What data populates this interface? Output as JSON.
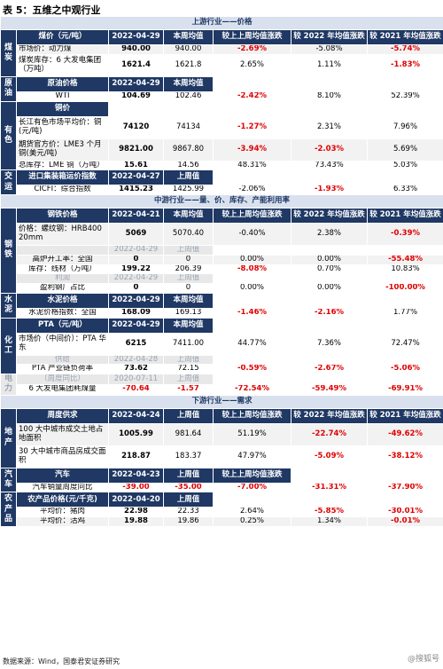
{
  "title": "表 5：五维之中观行业",
  "sections": {
    "upstream": "上游行业——价格",
    "midstream": "中游行业——量、价、库存、产能利用率",
    "downstream": "下游行业——需求"
  },
  "cols": {
    "current_week": "本周均值",
    "prev_week": "上周均值",
    "wow": "较上上周均值涨跌",
    "vs2022": "较 2022 年均值涨跌",
    "vs2021": "较 2021 年均值涨跌"
  },
  "rows": {
    "coal_hdr": {
      "label": "煤价（元/吨）",
      "date": "2022-04-29"
    },
    "coal_1": {
      "label": "市场价：动力煤",
      "cur": "940.00",
      "prev": "940.00",
      "wow": "-2.69%",
      "y22": "-5.08%",
      "y21": "-5.74%"
    },
    "coal_2": {
      "label": "煤炭库存：6 大发电集团（万吨）",
      "cur": "1621.4",
      "prev": "1621.8",
      "wow": "2.65%",
      "y22": "1.11%",
      "y21": "-1.83%"
    },
    "oil_hdr": {
      "label": "原油价格",
      "date": "2022-04-29"
    },
    "oil_1": {
      "label": "WTI",
      "cur": "104.69",
      "prev": "102.46",
      "wow": "-2.42%",
      "y22": "8.10%",
      "y21": "52.39%"
    },
    "cu_hdr": {
      "label": "铜价"
    },
    "cu_1": {
      "label": "长江有色市场平均价：铜(元/吨)",
      "cur": "74120",
      "prev": "74134",
      "wow": "-1.27%",
      "y22": "2.31%",
      "y21": "7.96%"
    },
    "cu_2": {
      "label": "期货官方价：LME3 个月铜(美元/吨)",
      "cur": "9821.00",
      "prev": "9867.80",
      "wow": "-3.94%",
      "y22": "-2.03%",
      "y21": "5.69%"
    },
    "cu_3": {
      "label": "总库存：LME 铜（万吨）",
      "cur": "15.61",
      "prev": "14.56",
      "wow": "48.31%",
      "y22": "73.43%",
      "y21": "5.03%"
    },
    "ship_hdr": {
      "label": "进口集装箱运价指数",
      "date": "2022-04-27",
      "prev": "上周值"
    },
    "ship_1": {
      "label": "CICFI：综合指数",
      "cur": "1415.23",
      "prev": "1425.99",
      "wow": "-2.06%",
      "y22": "-1.93%",
      "y21": "6.33%"
    },
    "steel_hdr": {
      "label": "钢铁价格",
      "date": "2022-04-21",
      "prev": "本周均值",
      "wow": "较上上周均值涨跌"
    },
    "steel_1": {
      "label": "价格：螺纹钢：HRB400 20mm",
      "cur": "5069",
      "prev": "5070.40",
      "wow": "-0.40%",
      "y22": "2.38%",
      "y21": "-0.39%"
    },
    "steel_hdr2": {
      "date": "2022-04-29",
      "prev": "上周值"
    },
    "steel_2": {
      "label": "高炉开工率：全国",
      "cur": "0",
      "prev": "0",
      "wow": "0.00%",
      "y22": "0.00%",
      "y21": "-55.48%"
    },
    "steel_3": {
      "label": "库存：线材（万吨）",
      "cur": "199.22",
      "prev": "206.39",
      "wow": "-8.08%",
      "y22": "0.70%",
      "y21": "10.83%"
    },
    "steel_hdr3": {
      "label": "利润",
      "date": "2022-04-29",
      "prev": "上周值"
    },
    "steel_4": {
      "label": "盈利钢厂占比",
      "cur": "0",
      "prev": "0",
      "wow": "0.00%",
      "y22": "0.00%",
      "y21": "-100.00%"
    },
    "cement_hdr": {
      "label": "水泥价格",
      "date": "2022-04-29",
      "prev": "本周均值"
    },
    "cement_1": {
      "label": "水泥价格指数：全国",
      "cur": "168.09",
      "prev": "169.13",
      "wow": "-1.46%",
      "y22": "-2.16%",
      "y21": "1.77%"
    },
    "chem_hdr": {
      "label": "PTA（元/吨）",
      "date": "2022-04-29",
      "prev": "本周均值"
    },
    "chem_1": {
      "label": "市场价（中间价）：PTA 华东",
      "cur": "6215",
      "prev": "7411.00",
      "wow": "44.77%",
      "y22": "7.36%",
      "y21": "72.47%"
    },
    "chem_hdr2": {
      "label": "供给",
      "date": "2022-04-28",
      "prev": "上周值"
    },
    "chem_2": {
      "label": "PTA 产业链负荷率",
      "cur": "73.62",
      "prev": "72.15",
      "wow": "-0.59%",
      "y22": "-2.67%",
      "y21": "-5.06%"
    },
    "power_hdr": {
      "label": "（周度同比）",
      "date": "2020-07-11",
      "prev": "上周值"
    },
    "power_1": {
      "label": "6 大发电集团耗煤量",
      "cur": "-70.64",
      "prev": "-1.57",
      "wow": "-72.54%",
      "y22": "-59.49%",
      "y21": "-69.91%"
    },
    "re_hdr": {
      "label": "周度供求",
      "date": "2022-04-24",
      "prev": "上周值"
    },
    "re_1": {
      "label": "100 大中城市成交土地占地面积",
      "cur": "1005.99",
      "prev": "981.64",
      "wow": "51.19%",
      "y22": "-22.74%",
      "y21": "-49.62%"
    },
    "re_2": {
      "label": "30 大中城市商品房成交面积",
      "cur": "218.87",
      "prev": "183.37",
      "wow": "47.97%",
      "y22": "-5.09%",
      "y21": "-38.12%"
    },
    "auto_hdr": {
      "label": "汽车",
      "date": "2022-04-23",
      "prev": "上周值",
      "wow": "较上上周均值涨跌"
    },
    "auto_1": {
      "label": "汽车销量周度同比",
      "cur": "-39.00",
      "prev": "-35.00",
      "wow": "-7.00%",
      "y22": "-31.31%",
      "y21": "-37.90%"
    },
    "agri_hdr": {
      "label": "农产品价格(元/千克)",
      "date": "2022-04-20",
      "prev": "上周值"
    },
    "agri_1": {
      "label": "平均价：猪肉",
      "cur": "22.98",
      "prev": "22.33",
      "wow": "2.64%",
      "y22": "-5.85%",
      "y21": "-30.01%"
    },
    "agri_2": {
      "label": "平均价：活鸡",
      "cur": "19.88",
      "prev": "19.86",
      "wow": "0.25%",
      "y22": "1.34%",
      "y21": "-0.01%"
    }
  },
  "cats": {
    "coal": "煤炭",
    "oil": "原油",
    "color": "有色",
    "ship": "交运",
    "steel": "钢铁",
    "cement": "水泥",
    "chem": "化工",
    "power": "电力",
    "realestate": "地产",
    "auto": "汽车",
    "agri": "农产品"
  },
  "footer": "数据来源：Wind，国泰君安证券研究",
  "watermark": "@搜狐号"
}
